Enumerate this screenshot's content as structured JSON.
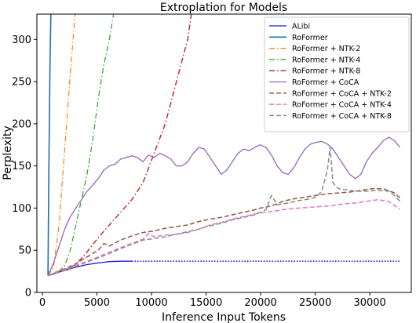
{
  "chart_data": {
    "type": "line",
    "title": "Extroplation for Models",
    "xlabel": "Inference Input Tokens",
    "ylabel": "Perplexity",
    "xlim": [
      -500,
      33800
    ],
    "ylim": [
      0,
      330
    ],
    "xticks": [
      0,
      5000,
      10000,
      15000,
      20000,
      25000,
      30000
    ],
    "yticks": [
      0,
      50,
      100,
      150,
      200,
      250,
      300
    ],
    "xtick_labels": [
      "0",
      "5000",
      "10000",
      "15000",
      "20000",
      "25000",
      "30000"
    ],
    "ytick_labels": [
      "0",
      "50",
      "100",
      "150",
      "200",
      "250",
      "300"
    ],
    "grid": false,
    "legend_position": "top-right",
    "series": [
      {
        "name": "ALibi",
        "color": "#1a1ae0",
        "dash": "solid",
        "width": 1.3,
        "points": [
          [
            512,
            20
          ],
          [
            1024,
            22
          ],
          [
            2048,
            26
          ],
          [
            3072,
            30
          ],
          [
            4096,
            33
          ],
          [
            5120,
            35
          ],
          [
            6144,
            36.5
          ],
          [
            7168,
            37
          ],
          [
            8192,
            37
          ]
        ]
      },
      {
        "name": "ALibi (extended)",
        "color": "#1a1ae0",
        "dash": "dotted",
        "width": 1.6,
        "points": [
          [
            8192,
            37
          ],
          [
            16384,
            37
          ],
          [
            24576,
            37
          ],
          [
            32768,
            37
          ]
        ]
      },
      {
        "name": "RoFormer",
        "color": "#1f6fb4",
        "dash": "solid",
        "width": 1.6,
        "points": [
          [
            512,
            20
          ],
          [
            600,
            150
          ],
          [
            700,
            270
          ],
          [
            800,
            345
          ]
        ]
      },
      {
        "name": "RoFormer + NTK-2",
        "color": "#ff7f0e",
        "dash": "dashdot",
        "width": 1.2,
        "points": [
          [
            512,
            20
          ],
          [
            1024,
            30
          ],
          [
            1536,
            80
          ],
          [
            2048,
            170
          ],
          [
            2560,
            260
          ],
          [
            3100,
            345
          ]
        ]
      },
      {
        "name": "RoFormer + NTK-4",
        "color": "#2ca02c",
        "dash": "dashdot",
        "width": 1.2,
        "points": [
          [
            512,
            20
          ],
          [
            1024,
            22
          ],
          [
            1536,
            25
          ],
          [
            2048,
            32
          ],
          [
            2560,
            50
          ],
          [
            3072,
            80
          ],
          [
            3584,
            110
          ],
          [
            4096,
            140
          ],
          [
            4608,
            180
          ],
          [
            5120,
            230
          ],
          [
            5632,
            270
          ],
          [
            6144,
            300
          ],
          [
            6700,
            345
          ]
        ]
      },
      {
        "name": "RoFormer + NTK-8",
        "color": "#c22222",
        "dash": "dashdot",
        "width": 1.4,
        "points": [
          [
            512,
            20
          ],
          [
            1024,
            22
          ],
          [
            2048,
            27
          ],
          [
            3072,
            33
          ],
          [
            4096,
            48
          ],
          [
            5120,
            65
          ],
          [
            6144,
            80
          ],
          [
            7168,
            95
          ],
          [
            8192,
            110
          ],
          [
            9216,
            130
          ],
          [
            10240,
            165
          ],
          [
            11264,
            200
          ],
          [
            12288,
            250
          ],
          [
            13312,
            300
          ],
          [
            13700,
            335
          ]
        ]
      },
      {
        "name": "RoFormer + CoCA",
        "color": "#9467bd",
        "dash": "solid",
        "width": 1.3,
        "points": [
          [
            512,
            20
          ],
          [
            1024,
            35
          ],
          [
            1536,
            55
          ],
          [
            2048,
            75
          ],
          [
            2560,
            90
          ],
          [
            3072,
            100
          ],
          [
            3584,
            110
          ],
          [
            4096,
            120
          ],
          [
            4608,
            127
          ],
          [
            5120,
            135
          ],
          [
            5632,
            145
          ],
          [
            6144,
            150
          ],
          [
            6656,
            152
          ],
          [
            7168,
            158
          ],
          [
            7680,
            160
          ],
          [
            8192,
            162
          ],
          [
            8704,
            160
          ],
          [
            9216,
            155
          ],
          [
            9728,
            163
          ],
          [
            10240,
            160
          ],
          [
            10752,
            165
          ],
          [
            11264,
            162
          ],
          [
            11776,
            158
          ],
          [
            12288,
            150
          ],
          [
            12800,
            150
          ],
          [
            13312,
            155
          ],
          [
            13824,
            165
          ],
          [
            14336,
            172
          ],
          [
            14848,
            170
          ],
          [
            15360,
            160
          ],
          [
            15872,
            150
          ],
          [
            16384,
            140
          ],
          [
            16896,
            145
          ],
          [
            17408,
            155
          ],
          [
            17920,
            165
          ],
          [
            18432,
            170
          ],
          [
            18944,
            168
          ],
          [
            19456,
            172
          ],
          [
            19968,
            175
          ],
          [
            20480,
            172
          ],
          [
            20992,
            163
          ],
          [
            21504,
            150
          ],
          [
            22016,
            142
          ],
          [
            22528,
            140
          ],
          [
            23040,
            148
          ],
          [
            23552,
            160
          ],
          [
            24064,
            170
          ],
          [
            24576,
            176
          ],
          [
            25088,
            178
          ],
          [
            25600,
            179
          ],
          [
            26112,
            176
          ],
          [
            26624,
            170
          ],
          [
            27136,
            160
          ],
          [
            27648,
            150
          ],
          [
            28160,
            140
          ],
          [
            28672,
            135
          ],
          [
            29184,
            140
          ],
          [
            29696,
            155
          ],
          [
            30208,
            165
          ],
          [
            30720,
            172
          ],
          [
            31232,
            180
          ],
          [
            31744,
            184
          ],
          [
            32256,
            180
          ],
          [
            32768,
            172
          ]
        ]
      },
      {
        "name": "RoFormer + CoCA + NTK-2",
        "color": "#8c5a44",
        "dash": "dashed",
        "width": 1.5,
        "points": [
          [
            512,
            20
          ],
          [
            1024,
            23
          ],
          [
            2048,
            28
          ],
          [
            3072,
            34
          ],
          [
            4096,
            42
          ],
          [
            5120,
            50
          ],
          [
            5632,
            58
          ],
          [
            6144,
            55
          ],
          [
            7168,
            62
          ],
          [
            8192,
            67
          ],
          [
            9216,
            71
          ],
          [
            10240,
            73
          ],
          [
            11264,
            76
          ],
          [
            12288,
            78
          ],
          [
            13312,
            80
          ],
          [
            14336,
            84
          ],
          [
            15360,
            87
          ],
          [
            16384,
            89
          ],
          [
            17408,
            92
          ],
          [
            18432,
            95
          ],
          [
            19456,
            98
          ],
          [
            19968,
            100
          ],
          [
            20480,
            101
          ],
          [
            20992,
            103
          ],
          [
            21504,
            105
          ],
          [
            22016,
            108
          ],
          [
            23040,
            111
          ],
          [
            24064,
            113
          ],
          [
            25088,
            115
          ],
          [
            26112,
            117
          ],
          [
            27136,
            118
          ],
          [
            28160,
            119
          ],
          [
            29184,
            121
          ],
          [
            30208,
            123
          ],
          [
            31232,
            123
          ],
          [
            32256,
            118
          ],
          [
            32768,
            112
          ]
        ]
      },
      {
        "name": "RoFormer + CoCA + NTK-4",
        "color": "#e377c2",
        "dash": "dashed",
        "width": 1.5,
        "points": [
          [
            512,
            20
          ],
          [
            1024,
            23
          ],
          [
            2048,
            27
          ],
          [
            3072,
            32
          ],
          [
            4096,
            37
          ],
          [
            5120,
            42
          ],
          [
            6144,
            48
          ],
          [
            7168,
            53
          ],
          [
            8192,
            58
          ],
          [
            9216,
            63
          ],
          [
            9728,
            70
          ],
          [
            10240,
            66
          ],
          [
            11264,
            68
          ],
          [
            12288,
            69
          ],
          [
            13312,
            71
          ],
          [
            14336,
            75
          ],
          [
            15360,
            80
          ],
          [
            16384,
            83
          ],
          [
            17408,
            87
          ],
          [
            18432,
            90
          ],
          [
            19456,
            93
          ],
          [
            20480,
            95
          ],
          [
            21504,
            97
          ],
          [
            22528,
            99
          ],
          [
            23552,
            100
          ],
          [
            24576,
            101
          ],
          [
            25600,
            102
          ],
          [
            26624,
            103
          ],
          [
            27648,
            105
          ],
          [
            28672,
            106
          ],
          [
            29696,
            108
          ],
          [
            30720,
            110
          ],
          [
            31744,
            108
          ],
          [
            32256,
            103
          ],
          [
            32768,
            99
          ]
        ]
      },
      {
        "name": "RoFormer + CoCA + NTK-8",
        "color": "#8a8a8a",
        "dash": "dashed",
        "width": 1.5,
        "points": [
          [
            512,
            20
          ],
          [
            1024,
            22
          ],
          [
            2048,
            26
          ],
          [
            3072,
            31
          ],
          [
            4096,
            36
          ],
          [
            5120,
            41
          ],
          [
            6144,
            46
          ],
          [
            7168,
            52
          ],
          [
            8192,
            57
          ],
          [
            9216,
            62
          ],
          [
            10240,
            64
          ],
          [
            11264,
            66
          ],
          [
            12288,
            69
          ],
          [
            13312,
            72
          ],
          [
            14336,
            75
          ],
          [
            15360,
            79
          ],
          [
            16384,
            82
          ],
          [
            17408,
            86
          ],
          [
            18432,
            89
          ],
          [
            19456,
            92
          ],
          [
            20480,
            98
          ],
          [
            20992,
            115
          ],
          [
            21504,
            104
          ],
          [
            22528,
            106
          ],
          [
            23552,
            109
          ],
          [
            24576,
            111
          ],
          [
            25088,
            113
          ],
          [
            25600,
            120
          ],
          [
            26112,
            145
          ],
          [
            26368,
            172
          ],
          [
            26624,
            130
          ],
          [
            27136,
            123
          ],
          [
            27648,
            122
          ],
          [
            28672,
            120
          ],
          [
            29696,
            120
          ],
          [
            30720,
            121
          ],
          [
            31744,
            120
          ],
          [
            32256,
            115
          ],
          [
            32768,
            108
          ]
        ]
      }
    ]
  }
}
